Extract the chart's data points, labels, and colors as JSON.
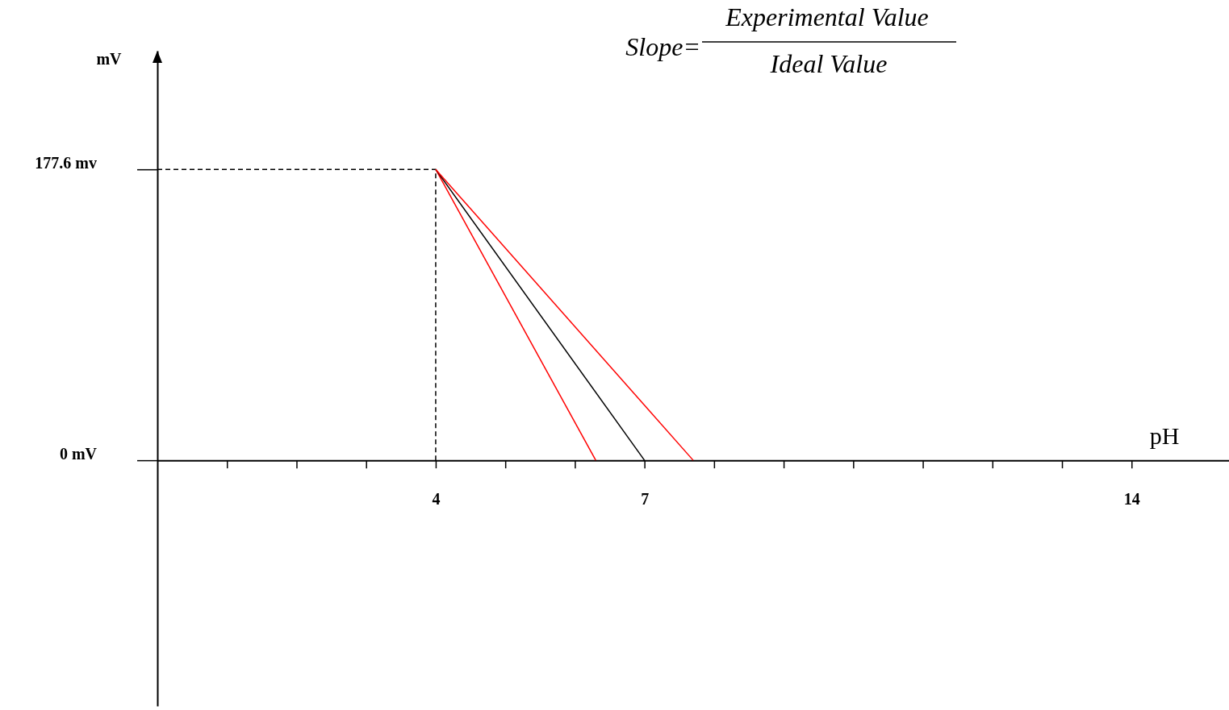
{
  "chart_data": {
    "type": "line",
    "xlabel": "pH",
    "ylabel": "mV",
    "annotations": [
      "Slope=",
      "Experimental Value",
      "Ideal Value"
    ],
    "xlim": [
      0,
      15.4
    ],
    "ylim": [
      -150,
      250
    ],
    "xticks": [
      {
        "value": 1,
        "label": null
      },
      {
        "value": 2,
        "label": null
      },
      {
        "value": 3,
        "label": null
      },
      4,
      {
        "value": 5,
        "label": null
      },
      {
        "value": 6,
        "label": null
      },
      7,
      {
        "value": 8,
        "label": null
      },
      {
        "value": 9,
        "label": null
      },
      {
        "value": 10,
        "label": null
      },
      {
        "value": 11,
        "label": null
      },
      {
        "value": 12,
        "label": null
      },
      {
        "value": 13,
        "label": null
      },
      14
    ],
    "yticks": [
      {
        "value": 0,
        "label": "0 mV"
      },
      {
        "value": 177.6,
        "label": "177.6 mv"
      }
    ],
    "series": [
      {
        "color": "#000000",
        "x": [
          0,
          4,
          4
        ],
        "values": [
          177.6,
          177.6,
          0
        ],
        "line_style": "dashed"
      },
      {
        "color": "#ff0000",
        "x": [
          4,
          6.3
        ],
        "values": [
          177.6,
          0
        ]
      },
      {
        "color": "#000000",
        "x": [
          4,
          7
        ],
        "values": [
          177.6,
          0
        ]
      },
      {
        "color": "#ff0000",
        "x": [
          4,
          7.7
        ],
        "values": [
          177.6,
          0
        ]
      }
    ]
  }
}
